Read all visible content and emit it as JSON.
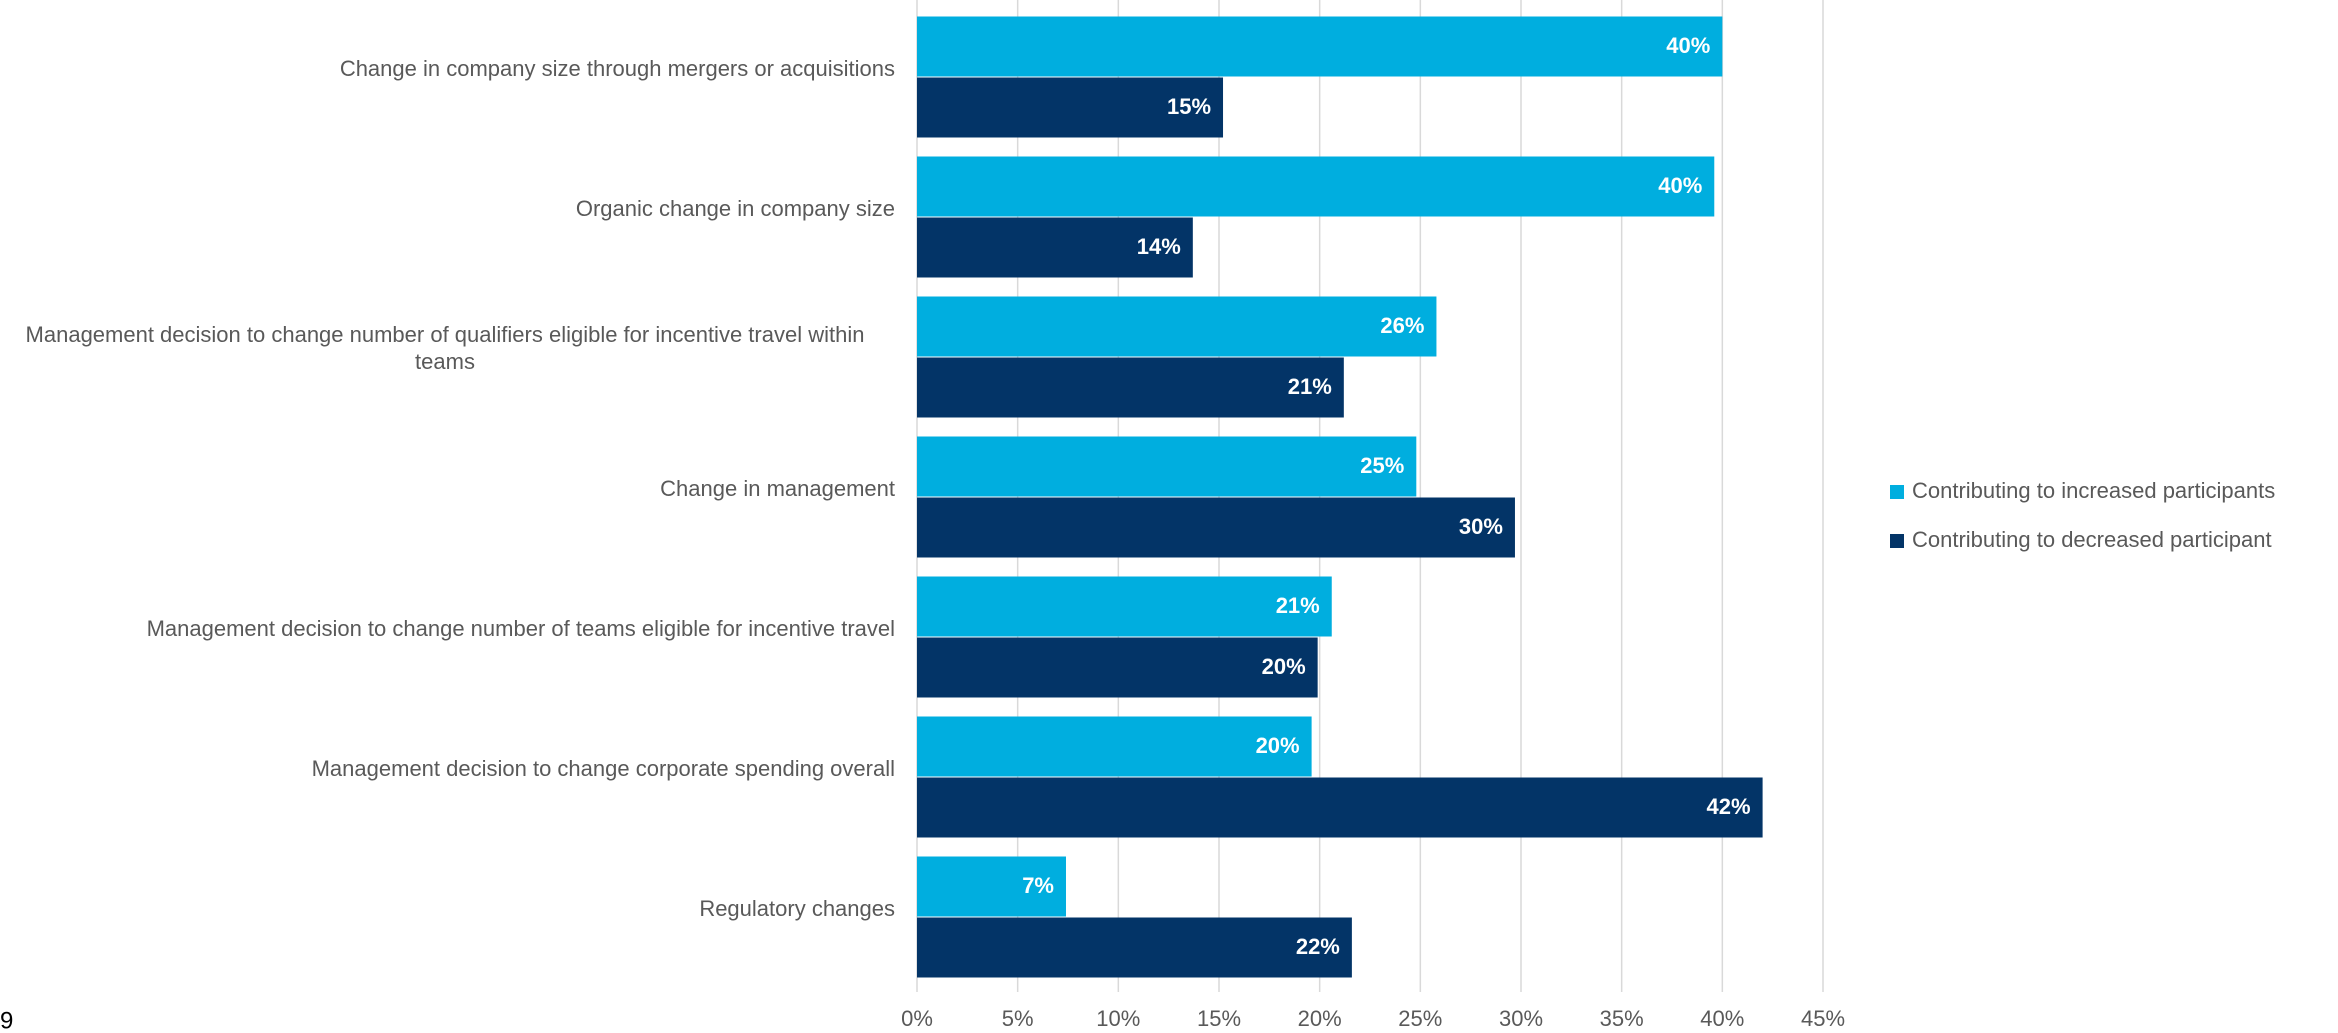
{
  "chart_data": {
    "type": "hbar",
    "categories": [
      "Change in company size through mergers or acquisitions",
      "Organic change in company size",
      "Management decision to change number of qualifiers eligible for incentive travel within teams",
      "Change in management",
      "Management decision to change number of teams eligible for incentive travel",
      "Management decision to change corporate spending overall",
      "Regulatory changes"
    ],
    "series": [
      {
        "name": "Contributing to increased participants",
        "color": "#00aedf",
        "values": [
          40.0,
          39.6,
          25.8,
          24.8,
          20.6,
          19.6,
          7.4
        ],
        "value_labels": [
          "40%",
          "40%",
          "26%",
          "25%",
          "21%",
          "20%",
          "7%"
        ]
      },
      {
        "name": "Contributing to decreased participant",
        "color": "#033467",
        "values": [
          15.2,
          13.7,
          21.2,
          29.7,
          19.9,
          42.0,
          21.6
        ],
        "value_labels": [
          "15%",
          "14%",
          "21%",
          "30%",
          "20%",
          "42%",
          "22%"
        ]
      }
    ],
    "xlim": [
      0,
      45
    ],
    "xticks": [
      {
        "value": 0,
        "label": "0%"
      },
      {
        "value": 5,
        "label": "5%"
      },
      {
        "value": 10,
        "label": "10%"
      },
      {
        "value": 15,
        "label": "15%"
      },
      {
        "value": 20,
        "label": "20%"
      },
      {
        "value": 25,
        "label": "25%"
      },
      {
        "value": 30,
        "label": "30%"
      },
      {
        "value": 35,
        "label": "35%"
      },
      {
        "value": 40,
        "label": "40%"
      },
      {
        "value": 45,
        "label": "45%"
      }
    ],
    "grid": true,
    "legend": "right"
  },
  "footer": {
    "page_number": "9"
  }
}
